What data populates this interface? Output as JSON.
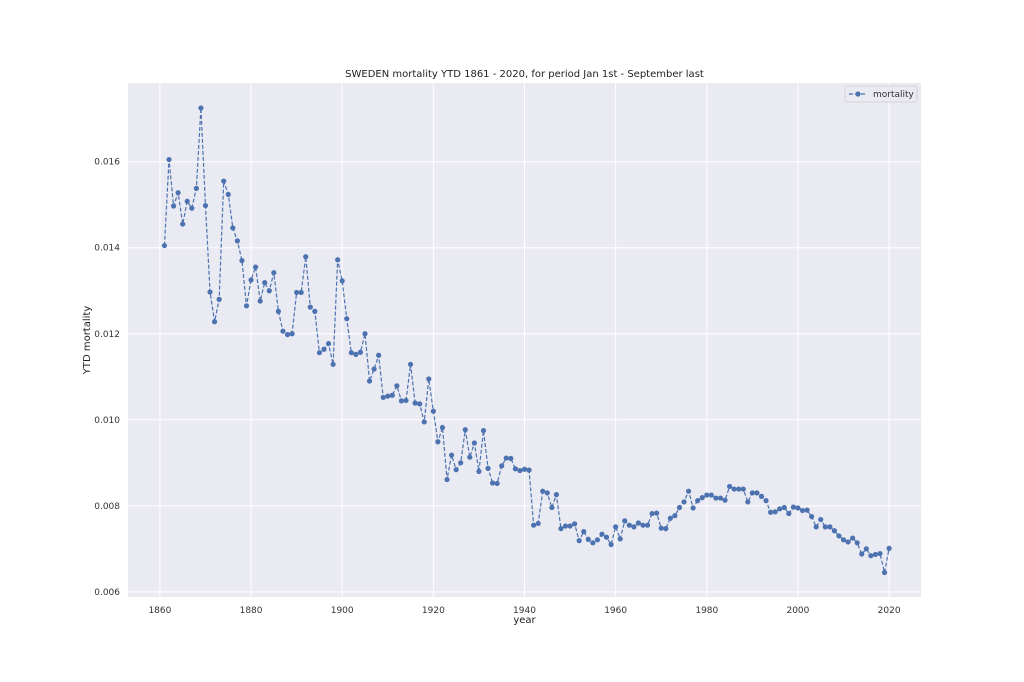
{
  "chart_data": {
    "type": "line",
    "title": "SWEDEN mortality YTD 1861 - 2020, for period Jan 1st - September last",
    "xlabel": "year",
    "ylabel": "YTD mortality",
    "xlim": [
      1853,
      2027
    ],
    "ylim": [
      0.00588,
      0.01783
    ],
    "x_ticks": [
      1860,
      1880,
      1900,
      1920,
      1940,
      1960,
      1980,
      2000,
      2020
    ],
    "x_tick_labels": [
      "1860",
      "1880",
      "1900",
      "1920",
      "1940",
      "1960",
      "1980",
      "2000",
      "2020"
    ],
    "y_ticks": [
      0.006,
      0.008,
      0.01,
      0.012,
      0.014,
      0.016
    ],
    "y_tick_labels": [
      "0.006",
      "0.008",
      "0.010",
      "0.012",
      "0.014",
      "0.016"
    ],
    "grid": true,
    "legend_position": "top-right",
    "series": [
      {
        "name": "mortality",
        "color": "#4c72b0",
        "line_style": "dashed",
        "marker": "circle",
        "x": [
          1861,
          1862,
          1863,
          1864,
          1865,
          1866,
          1867,
          1868,
          1869,
          1870,
          1871,
          1872,
          1873,
          1874,
          1875,
          1876,
          1877,
          1878,
          1879,
          1880,
          1881,
          1882,
          1883,
          1884,
          1885,
          1886,
          1887,
          1888,
          1889,
          1890,
          1891,
          1892,
          1893,
          1894,
          1895,
          1896,
          1897,
          1898,
          1899,
          1900,
          1901,
          1902,
          1903,
          1904,
          1905,
          1906,
          1907,
          1908,
          1909,
          1910,
          1911,
          1912,
          1913,
          1914,
          1915,
          1916,
          1917,
          1918,
          1919,
          1920,
          1921,
          1922,
          1923,
          1924,
          1925,
          1926,
          1927,
          1928,
          1929,
          1930,
          1931,
          1932,
          1933,
          1934,
          1935,
          1936,
          1937,
          1938,
          1939,
          1940,
          1941,
          1942,
          1943,
          1944,
          1945,
          1946,
          1947,
          1948,
          1949,
          1950,
          1951,
          1952,
          1953,
          1954,
          1955,
          1956,
          1957,
          1958,
          1959,
          1960,
          1961,
          1962,
          1963,
          1964,
          1965,
          1966,
          1967,
          1968,
          1969,
          1970,
          1971,
          1972,
          1973,
          1974,
          1975,
          1976,
          1977,
          1978,
          1979,
          1980,
          1981,
          1982,
          1983,
          1984,
          1985,
          1986,
          1987,
          1988,
          1989,
          1990,
          1991,
          1992,
          1993,
          1994,
          1995,
          1996,
          1997,
          1998,
          1999,
          2000,
          2001,
          2002,
          2003,
          2004,
          2005,
          2006,
          2007,
          2008,
          2009,
          2010,
          2011,
          2012,
          2013,
          2014,
          2015,
          2016,
          2017,
          2018,
          2019,
          2020
        ],
        "values": [
          0.01405,
          0.01605,
          0.01497,
          0.01528,
          0.01455,
          0.01508,
          0.01492,
          0.01538,
          0.01725,
          0.01498,
          0.01297,
          0.01228,
          0.0128,
          0.01555,
          0.01524,
          0.01446,
          0.01416,
          0.0137,
          0.01265,
          0.01325,
          0.01355,
          0.01276,
          0.01319,
          0.013,
          0.01342,
          0.01252,
          0.01206,
          0.01198,
          0.012,
          0.01296,
          0.01296,
          0.01379,
          0.01262,
          0.01252,
          0.01156,
          0.01164,
          0.01177,
          0.01129,
          0.01372,
          0.01323,
          0.01235,
          0.01156,
          0.01152,
          0.01157,
          0.012,
          0.0109,
          0.01118,
          0.0115,
          0.01052,
          0.01055,
          0.01057,
          0.01079,
          0.01044,
          0.01045,
          0.01129,
          0.01039,
          0.01037,
          0.00995,
          0.01095,
          0.0102,
          0.00949,
          0.00982,
          0.00861,
          0.00918,
          0.00884,
          0.009,
          0.00977,
          0.00913,
          0.00946,
          0.0088,
          0.00975,
          0.00887,
          0.00853,
          0.00852,
          0.00893,
          0.00911,
          0.0091,
          0.00886,
          0.00882,
          0.00885,
          0.00883,
          0.00755,
          0.00759,
          0.00834,
          0.0083,
          0.00796,
          0.00826,
          0.00747,
          0.00753,
          0.00753,
          0.00758,
          0.00719,
          0.0074,
          0.00722,
          0.00714,
          0.00721,
          0.00734,
          0.00727,
          0.0071,
          0.00751,
          0.00723,
          0.00765,
          0.00755,
          0.00751,
          0.0076,
          0.00755,
          0.00755,
          0.00782,
          0.00783,
          0.00748,
          0.00747,
          0.00771,
          0.00777,
          0.00796,
          0.00809,
          0.00834,
          0.00795,
          0.00812,
          0.00819,
          0.00825,
          0.00825,
          0.00818,
          0.00818,
          0.00813,
          0.00845,
          0.00839,
          0.00839,
          0.00839,
          0.00809,
          0.0083,
          0.0083,
          0.00822,
          0.00812,
          0.00785,
          0.00786,
          0.00793,
          0.00796,
          0.00782,
          0.00797,
          0.00795,
          0.00789,
          0.0079,
          0.00775,
          0.00751,
          0.00768,
          0.00751,
          0.00751,
          0.00742,
          0.0073,
          0.00721,
          0.00716,
          0.00725,
          0.00714,
          0.00688,
          0.007,
          0.00684,
          0.00687,
          0.00689,
          0.00645,
          0.00701
        ]
      }
    ]
  }
}
